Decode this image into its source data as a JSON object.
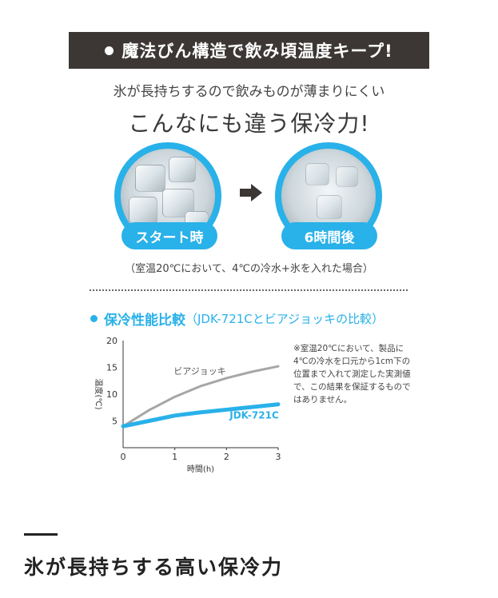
{
  "banner": {
    "title": "魔法びん構造で飲み頃温度キープ!"
  },
  "intro": {
    "subtitle": "氷が長持ちするので飲みものが薄まりにくい",
    "headline": "こんなにも違う保冷力!"
  },
  "comparison": {
    "before_label": "スタート時",
    "after_label": "6時間後",
    "note": "（室温20℃において、4℃の冷水+氷を入れた場合）"
  },
  "performance": {
    "title": "保冷性能比較",
    "subtitle": "（JDK-721Cとビアジョッキの比較）",
    "note": "※室温20℃において、製品に4℃の冷水を口元から1cm下の位置まで入れて測定した実測値で、この結果を保証するものではありません。"
  },
  "chart_data": {
    "type": "line",
    "xlabel": "時間(h)",
    "ylabel": "温度(℃)",
    "xlim": [
      0,
      3
    ],
    "ylim": [
      0,
      20
    ],
    "x_ticks": [
      "0",
      "1",
      "2",
      "3"
    ],
    "y_ticks": [
      "5",
      "10",
      "15",
      "20"
    ],
    "grid": false,
    "series": [
      {
        "name": "ビアジョッキ",
        "x": [
          0,
          0.5,
          1,
          1.5,
          2,
          2.5,
          3
        ],
        "values": [
          4,
          7,
          9.5,
          11.5,
          13,
          14.2,
          15.2
        ],
        "color": "#a6a6a6"
      },
      {
        "name": "JDK-721C",
        "x": [
          0,
          0.5,
          1,
          1.5,
          2,
          2.5,
          3
        ],
        "values": [
          4,
          5,
          6,
          6.6,
          7.1,
          7.6,
          8.1
        ],
        "color": "#29b1e9"
      }
    ]
  },
  "footer": {
    "title": "氷が長持ちする高い保冷力"
  },
  "colors": {
    "accent": "#29b1e9",
    "banner_bg": "#3c3735"
  }
}
